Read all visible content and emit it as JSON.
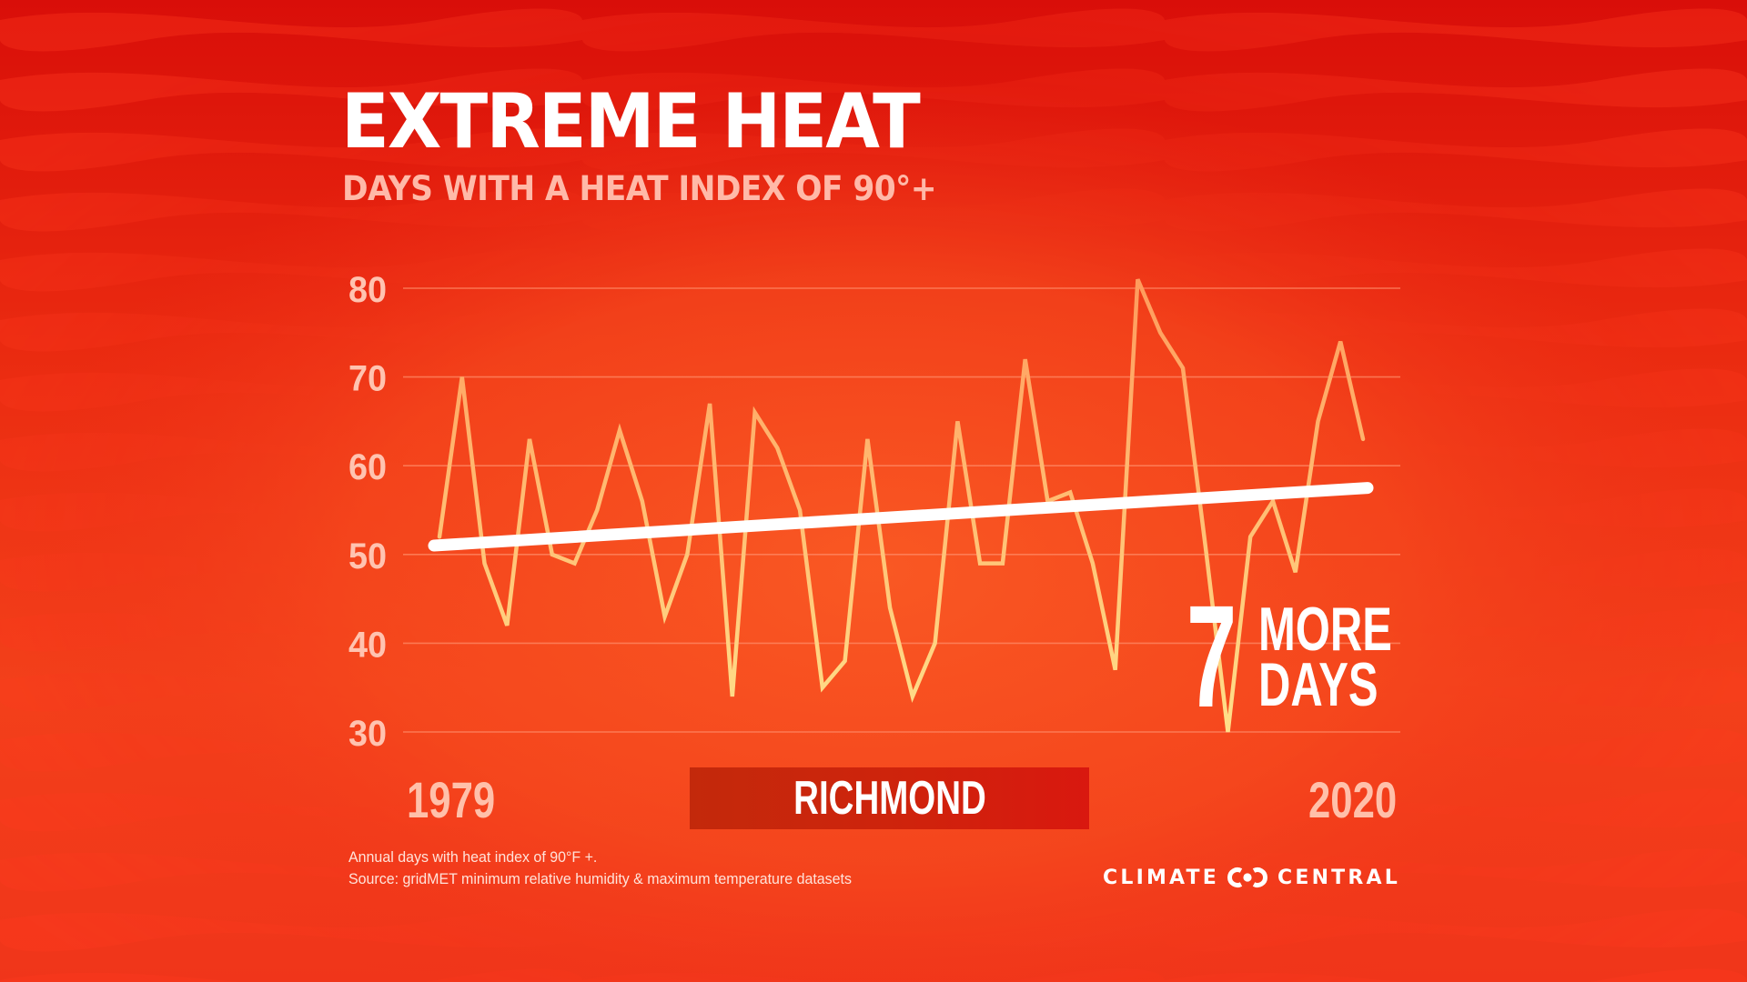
{
  "header": {
    "title": "EXTREME HEAT",
    "subtitle": "DAYS WITH A HEAT INDEX OF 90°+"
  },
  "axis": {
    "start_year_label": "1979",
    "end_year_label": "2020"
  },
  "location": {
    "city": "RICHMOND"
  },
  "callout": {
    "number": "7",
    "line1": "MORE",
    "line2": "DAYS"
  },
  "footnote": {
    "line1": "Annual days with heat index of 90°F +.",
    "line2": "Source:  gridMET minimum relative humidity & maximum temperature datasets"
  },
  "brand": {
    "left_word": "CLIMATE",
    "right_word": "CENTRAL",
    "logo_icon": "climate-central-rings-icon"
  },
  "colors": {
    "background_top": "#D90F0A",
    "background_mid": "#F55020",
    "wave_dark": "#F2140F",
    "wave_light": "#FC2A1A",
    "data_line_top": "#FF9A5C",
    "data_line_bottom": "#FFE08A",
    "trend_line": "#FFFFFF",
    "gridline": "#FF8A66",
    "tick_label": "#FFC3B0",
    "subtitle": "#FFB9A8",
    "city_box_left": "#C3290B",
    "city_box_right": "#D9180F"
  },
  "chart_data": {
    "type": "line",
    "title": "EXTREME HEAT",
    "subtitle": "DAYS WITH A HEAT INDEX OF 90°+",
    "xlabel": "",
    "ylabel": "",
    "location": "RICHMOND",
    "x": [
      1979,
      1980,
      1981,
      1982,
      1983,
      1984,
      1985,
      1986,
      1987,
      1988,
      1989,
      1990,
      1991,
      1992,
      1993,
      1994,
      1995,
      1996,
      1997,
      1998,
      1999,
      2000,
      2001,
      2002,
      2003,
      2004,
      2005,
      2006,
      2007,
      2008,
      2009,
      2010,
      2011,
      2012,
      2013,
      2014,
      2015,
      2016,
      2017,
      2018,
      2019,
      2020
    ],
    "series": [
      {
        "name": "Annual days with heat index of 90°F+",
        "values": [
          52,
          70,
          49,
          42,
          63,
          50,
          49,
          55,
          64,
          56,
          43,
          50,
          67,
          34,
          66,
          62,
          55,
          35,
          38,
          63,
          44,
          34,
          40,
          65,
          49,
          49,
          72,
          56,
          57,
          49,
          37,
          81,
          75,
          71,
          51,
          30,
          52,
          56,
          48,
          65,
          74,
          63
        ]
      },
      {
        "name": "Trend",
        "values_start_end": [
          51.0,
          57.5
        ]
      }
    ],
    "x_tick_labels": [
      "1979",
      "2020"
    ],
    "y_ticks": [
      30,
      40,
      50,
      60,
      70,
      80
    ],
    "ylim": [
      30,
      80
    ],
    "grid": true,
    "legend": "none",
    "annotations": [
      "7 MORE DAYS"
    ],
    "footnote": "Annual days with heat index of 90°F +. Source: gridMET minimum relative humidity & maximum temperature datasets"
  }
}
